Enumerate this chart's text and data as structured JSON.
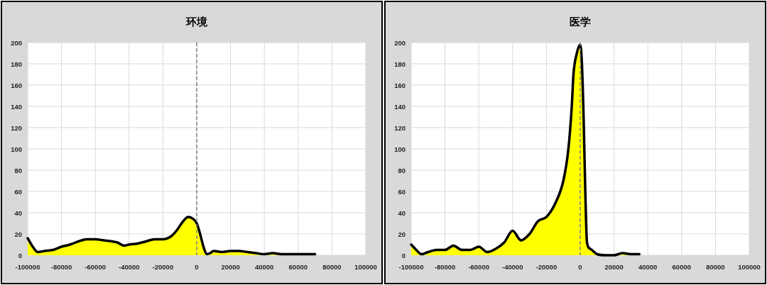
{
  "chart_data": [
    {
      "type": "area",
      "title": "环境",
      "x": [
        -100000,
        -97000,
        -94000,
        -90000,
        -85000,
        -80000,
        -75000,
        -70000,
        -65000,
        -60000,
        -55000,
        -50000,
        -47000,
        -43000,
        -40000,
        -35000,
        -30000,
        -25000,
        -20000,
        -15000,
        -12000,
        -8000,
        -5000,
        -2000,
        0,
        2000,
        4000,
        6000,
        8000,
        10000,
        15000,
        20000,
        25000,
        30000,
        35000,
        40000,
        45000,
        50000,
        60000,
        70000
      ],
      "series": [
        {
          "color": "#ffff00",
          "values": [
            16,
            8,
            3,
            4,
            5,
            8,
            10,
            13,
            15,
            15,
            14,
            13,
            12,
            9,
            10,
            11,
            13,
            15,
            15,
            18,
            23,
            32,
            36,
            34,
            30,
            20,
            8,
            1,
            2,
            4,
            3,
            4,
            4,
            3,
            2,
            1,
            2,
            1,
            1,
            1
          ]
        }
      ],
      "xlim": [
        -100000,
        100000
      ],
      "xticks": [
        -100000,
        -80000,
        -60000,
        -40000,
        -20000,
        0,
        20000,
        40000,
        60000,
        80000,
        100000
      ],
      "ylim": [
        0,
        200
      ],
      "yticks": [
        0,
        20,
        40,
        60,
        80,
        100,
        120,
        140,
        160,
        180,
        200
      ],
      "grid": true,
      "ref_lines": [
        {
          "axis": "x",
          "value": 0,
          "color": "#808080",
          "line_style": "dashed"
        }
      ]
    },
    {
      "type": "area",
      "title": "医学",
      "x": [
        -100000,
        -97000,
        -94000,
        -90000,
        -85000,
        -80000,
        -75000,
        -70000,
        -65000,
        -60000,
        -55000,
        -50000,
        -45000,
        -40000,
        -35000,
        -30000,
        -25000,
        -20000,
        -15000,
        -10000,
        -7000,
        -5000,
        -4000,
        -2000,
        0,
        1000,
        2000,
        3000,
        4000,
        6000,
        10000,
        15000,
        20000,
        25000,
        30000,
        35000
      ],
      "series": [
        {
          "color": "#ffff00",
          "values": [
            10,
            5,
            1,
            3,
            5,
            5,
            9,
            5,
            5,
            8,
            3,
            6,
            12,
            23,
            14,
            20,
            32,
            36,
            48,
            70,
            100,
            140,
            170,
            190,
            198,
            180,
            130,
            60,
            12,
            6,
            1,
            0,
            0,
            2,
            1,
            1
          ]
        }
      ],
      "xlim": [
        -100000,
        100000
      ],
      "xticks": [
        -100000,
        -80000,
        -60000,
        -40000,
        -20000,
        0,
        20000,
        40000,
        60000,
        80000,
        100000
      ],
      "ylim": [
        0,
        200
      ],
      "yticks": [
        0,
        20,
        40,
        60,
        80,
        100,
        120,
        140,
        160,
        180,
        200
      ],
      "grid": true,
      "ref_lines": [
        {
          "axis": "x",
          "value": 0,
          "color": "#808080",
          "line_style": "dashed"
        }
      ]
    }
  ]
}
